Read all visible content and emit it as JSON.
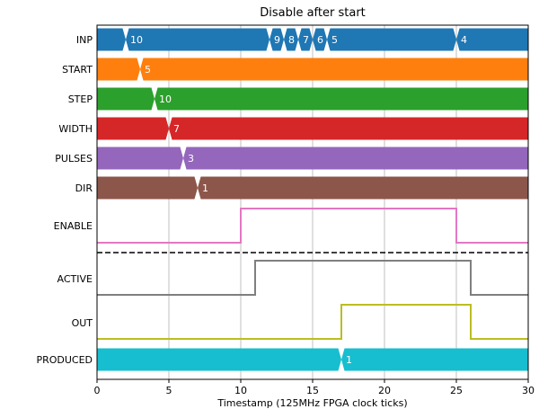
{
  "chart_data": {
    "type": "timing",
    "title": "Disable after start",
    "xlabel": "Timestamp (125MHz FPGA clock ticks)",
    "xlim": [
      0,
      30
    ],
    "xticks": [
      0,
      5,
      10,
      15,
      20,
      25,
      30
    ],
    "grid": "vertical",
    "separator_after": "ENABLE",
    "bus_signals": [
      {
        "name": "INP",
        "color": "#1f77b4",
        "transitions": [
          {
            "t": 2,
            "label": "10"
          },
          {
            "t": 12,
            "label": "9"
          },
          {
            "t": 13,
            "label": "8"
          },
          {
            "t": 14,
            "label": "7"
          },
          {
            "t": 15,
            "label": "6"
          },
          {
            "t": 16,
            "label": "5"
          },
          {
            "t": 25,
            "label": "4"
          }
        ]
      },
      {
        "name": "START",
        "color": "#ff7f0e",
        "transitions": [
          {
            "t": 3,
            "label": "5"
          }
        ]
      },
      {
        "name": "STEP",
        "color": "#2ca02c",
        "transitions": [
          {
            "t": 4,
            "label": "10"
          }
        ]
      },
      {
        "name": "WIDTH",
        "color": "#d62728",
        "transitions": [
          {
            "t": 5,
            "label": "7"
          }
        ]
      },
      {
        "name": "PULSES",
        "color": "#9467bd",
        "transitions": [
          {
            "t": 6,
            "label": "3"
          }
        ]
      },
      {
        "name": "DIR",
        "color": "#8c564b",
        "transitions": [
          {
            "t": 7,
            "label": "1"
          }
        ]
      }
    ],
    "bit_signals": [
      {
        "name": "ENABLE",
        "color": "#e377c2",
        "edges": [
          [
            0,
            0
          ],
          [
            10,
            1
          ],
          [
            25,
            0
          ]
        ]
      },
      {
        "name": "ACTIVE",
        "color": "#7f7f7f",
        "edges": [
          [
            0,
            0
          ],
          [
            11,
            1
          ],
          [
            26,
            0
          ]
        ]
      },
      {
        "name": "OUT",
        "color": "#bcbd22",
        "edges": [
          [
            0,
            0
          ],
          [
            17,
            1
          ],
          [
            26,
            0
          ]
        ]
      }
    ],
    "bus_signals_bottom": [
      {
        "name": "PRODUCED",
        "color": "#17becf",
        "transitions": [
          {
            "t": 17,
            "label": "1"
          }
        ]
      }
    ]
  }
}
